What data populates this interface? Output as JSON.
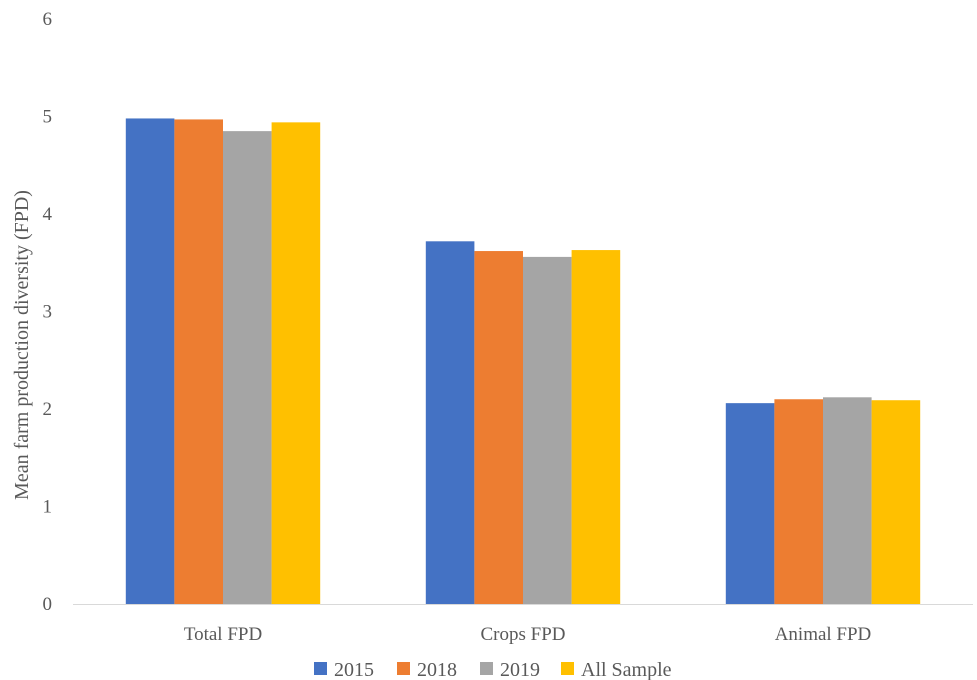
{
  "chart_data": {
    "type": "bar",
    "categories": [
      "Total FPD",
      "Crops FPD",
      "Animal FPD"
    ],
    "series": [
      {
        "name": "2015",
        "color": "#4472C4",
        "values": [
          4.98,
          3.72,
          2.06
        ]
      },
      {
        "name": "2018",
        "color": "#ED7D31",
        "values": [
          4.97,
          3.62,
          2.1
        ]
      },
      {
        "name": "2019",
        "color": "#A5A5A5",
        "values": [
          4.85,
          3.56,
          2.12
        ]
      },
      {
        "name": "All Sample",
        "color": "#FFC000",
        "values": [
          4.94,
          3.63,
          2.09
        ]
      }
    ],
    "ylabel": "Mean farm production diversity (FPD)",
    "ylim": [
      0,
      6
    ],
    "yticks": [
      "0",
      "1",
      "2",
      "3",
      "4",
      "5",
      "6"
    ],
    "grid": false,
    "legend": "bottom"
  }
}
